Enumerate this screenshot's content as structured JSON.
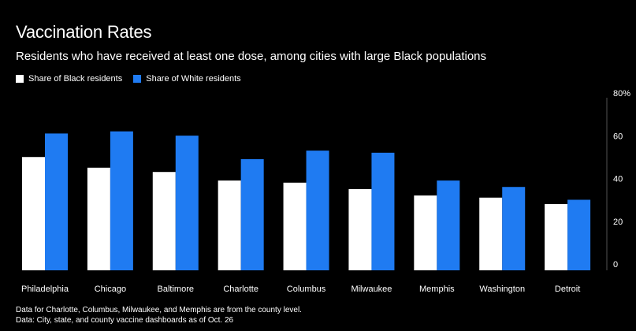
{
  "header": {
    "title": "Vaccination Rates",
    "subtitle": "Residents who have received at least one dose, among cities with large Black populations"
  },
  "legend": [
    {
      "label": "Share of Black residents",
      "color": "#ffffff"
    },
    {
      "label": "Share of White residents",
      "color": "#1f7bf2"
    }
  ],
  "notes": {
    "line1": "Data for Charlotte, Columbus, Milwaukee, and Memphis are from the county level.",
    "line2": "Data: City, state, and county vaccine dashboards as of Oct. 26"
  },
  "chart_data": {
    "type": "bar",
    "title": "Vaccination Rates",
    "subtitle": "Residents who have received at least one dose, among cities with large Black populations",
    "categories": [
      "Philadelphia",
      "Chicago",
      "Baltimore",
      "Charlotte",
      "Columbus",
      "Milwaukee",
      "Memphis",
      "Washington",
      "Detroit"
    ],
    "series": [
      {
        "name": "Share of Black residents",
        "color": "#ffffff",
        "values": [
          53,
          48,
          46,
          42,
          41,
          38,
          35,
          34,
          31
        ]
      },
      {
        "name": "Share of White residents",
        "color": "#1f7bf2",
        "values": [
          64,
          65,
          63,
          52,
          56,
          55,
          42,
          39,
          33
        ]
      }
    ],
    "yticks": [
      "0",
      "20",
      "40",
      "60",
      "80%"
    ],
    "ylim": [
      0,
      80
    ],
    "axis_position": "right",
    "legend_position": "top-left",
    "grid": false
  }
}
